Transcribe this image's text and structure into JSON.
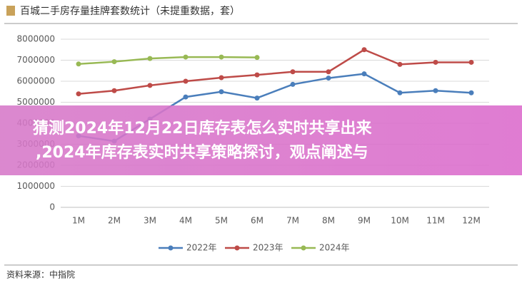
{
  "chart_data": {
    "type": "line",
    "title": "百城二手房存量挂牌套数统计（未提重数据，套）",
    "source": "资料来源：中指院",
    "categories": [
      "1M",
      "2M",
      "3M",
      "4M",
      "5M",
      "6M",
      "7M",
      "8M",
      "9M",
      "10M",
      "11M",
      "12M"
    ],
    "series": [
      {
        "name": "2022年",
        "color": "#4a7ebb",
        "values": [
          3400000,
          3150000,
          4200000,
          5250000,
          5500000,
          5200000,
          5850000,
          6150000,
          6350000,
          5450000,
          5550000,
          5450000
        ]
      },
      {
        "name": "2023年",
        "color": "#be4b48",
        "values": [
          5400000,
          5550000,
          5800000,
          6000000,
          6170000,
          6300000,
          6450000,
          6450000,
          7500000,
          6800000,
          6900000,
          6900000
        ]
      },
      {
        "name": "2024年",
        "color": "#98b954",
        "values": [
          6820000,
          6930000,
          7080000,
          7150000,
          7150000,
          7130000,
          null,
          null,
          null,
          null,
          null,
          null
        ]
      }
    ],
    "ylim": [
      0,
      8000000
    ],
    "yticks": [
      0,
      1000000,
      2000000,
      3000000,
      4000000,
      5000000,
      6000000,
      7000000,
      8000000
    ],
    "grid": true,
    "legend": "bottom"
  },
  "overlay": {
    "lines": [
      "猜测2024年12月22日库存表怎么实时共享出来",
      ",2024年库存表实时共享策略探讨，观点阐述与"
    ]
  }
}
